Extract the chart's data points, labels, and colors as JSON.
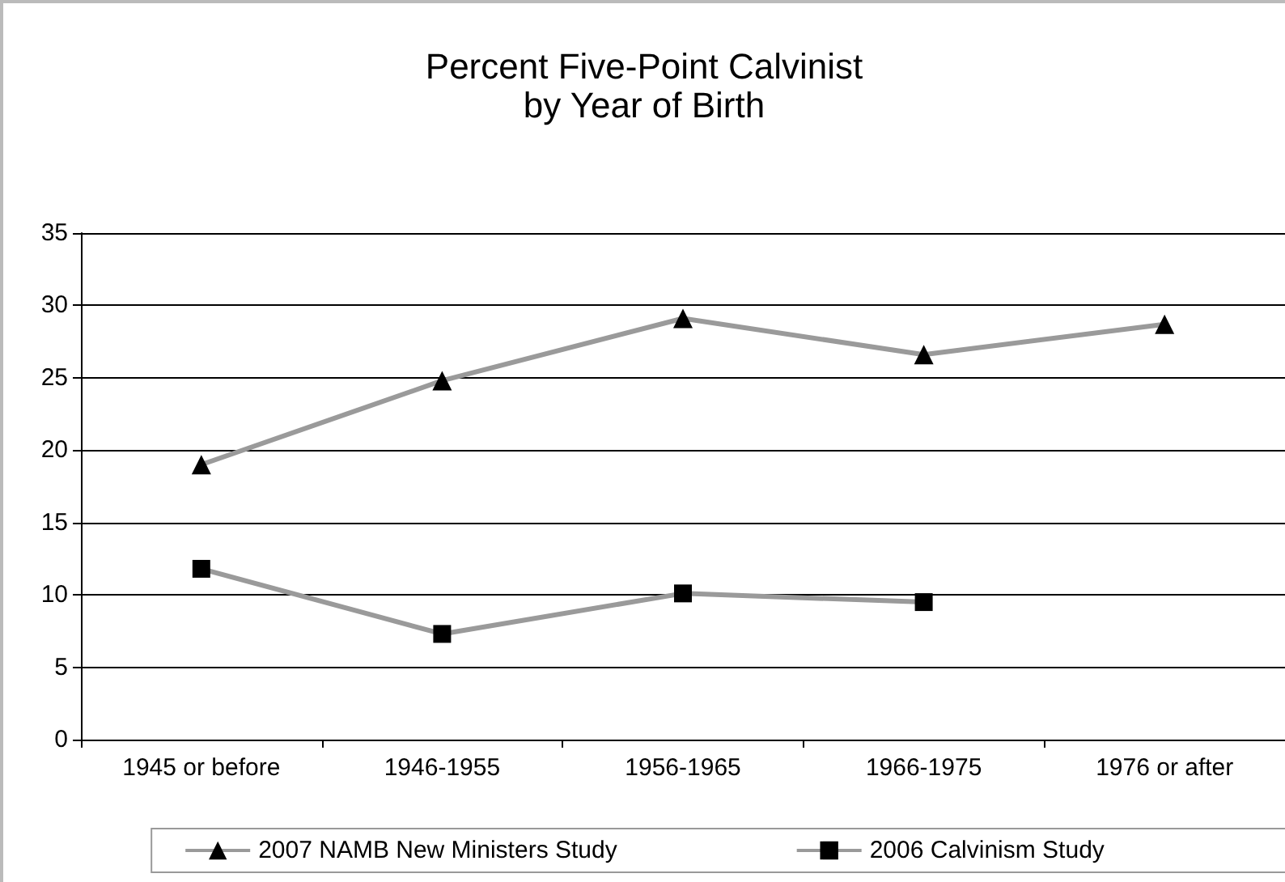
{
  "chart_data": {
    "type": "line",
    "title": "Percent Five-Point Calvinist\nby Year of Birth",
    "categories": [
      "1945 or before",
      "1946-1955",
      "1956-1965",
      "1966-1975",
      "1976 or after"
    ],
    "series": [
      {
        "name": "2007 NAMB New Ministers Study",
        "color": "#000000",
        "marker": "triangle",
        "values": [
          19,
          24.8,
          29.1,
          26.6,
          28.7
        ]
      },
      {
        "name": "2006 Calvinism Study",
        "color": "#000000",
        "marker": "square",
        "values": [
          11.8,
          7.3,
          10.1,
          9.5,
          null
        ]
      }
    ],
    "ylim": [
      0,
      35
    ],
    "yticks": [
      0,
      5,
      10,
      15,
      20,
      25,
      30,
      35
    ],
    "grid": "y",
    "legend": "bottom"
  }
}
